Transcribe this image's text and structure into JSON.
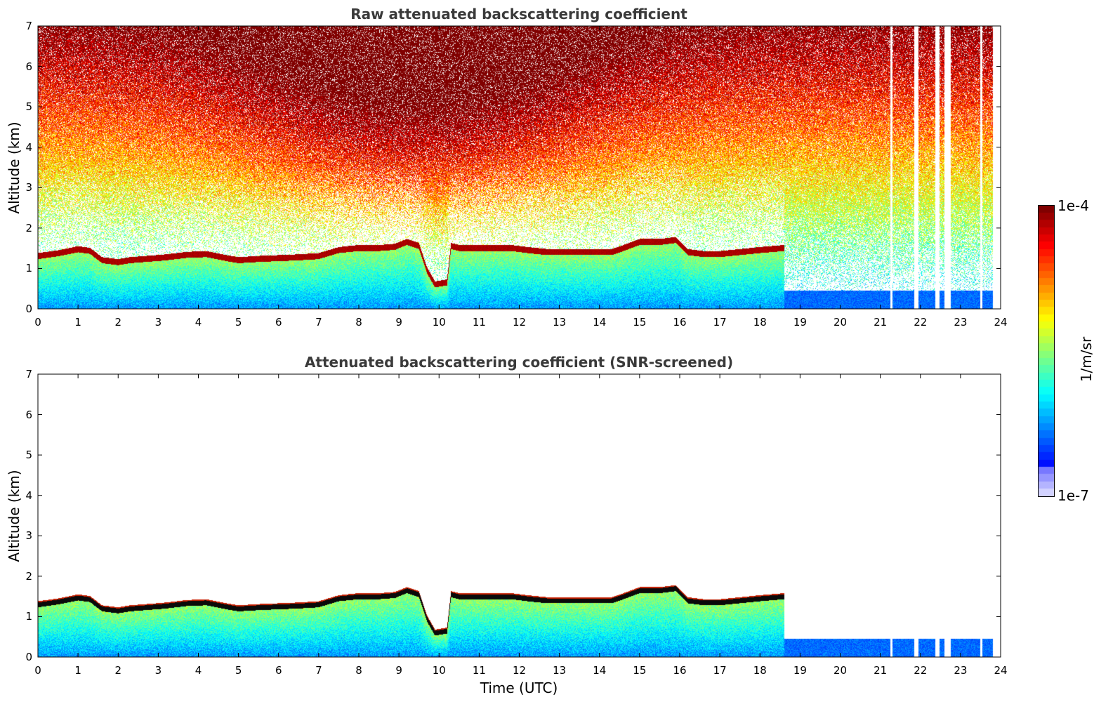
{
  "chart_data": [
    {
      "type": "heatmap",
      "title": "Raw attenuated backscattering coefficient",
      "ylabel": "Altitude (km)",
      "xlabel": "",
      "xlim": [
        0,
        24
      ],
      "ylim": [
        0,
        7
      ],
      "xticks": [
        "0",
        "1",
        "2",
        "3",
        "4",
        "5",
        "6",
        "7",
        "8",
        "9",
        "10",
        "11",
        "12",
        "13",
        "14",
        "15",
        "16",
        "17",
        "18",
        "19",
        "20",
        "21",
        "22",
        "23",
        "24"
      ],
      "yticks": [
        "0",
        "1",
        "2",
        "3",
        "4",
        "5",
        "6",
        "7"
      ],
      "data_end_hour": 23.8,
      "missing_data_hours": [
        [
          21.25,
          21.3
        ],
        [
          21.85,
          21.95
        ],
        [
          22.38,
          22.48
        ],
        [
          22.6,
          22.75
        ],
        [
          23.5,
          23.55
        ]
      ],
      "cloud_base_km": {
        "x": [
          0,
          0.5,
          1.0,
          1.3,
          1.6,
          2.0,
          2.3,
          2.7,
          3.2,
          3.7,
          4.2,
          4.7,
          5.0,
          5.5,
          6.0,
          6.5,
          7.0,
          7.5,
          8.0,
          8.5,
          8.9,
          9.2,
          9.5,
          9.7,
          9.9,
          10.2,
          10.3,
          10.5,
          10.8,
          11.2,
          11.8,
          12.2,
          12.7,
          13.2,
          13.8,
          14.3,
          14.6,
          15.0,
          15.5,
          15.9,
          16.2,
          16.6,
          17.0,
          17.5,
          18.0,
          18.6
        ],
        "y": [
          1.25,
          1.32,
          1.42,
          1.38,
          1.15,
          1.1,
          1.15,
          1.18,
          1.22,
          1.28,
          1.3,
          1.2,
          1.15,
          1.18,
          1.2,
          1.22,
          1.25,
          1.4,
          1.45,
          1.45,
          1.48,
          1.6,
          1.5,
          0.9,
          0.55,
          0.6,
          1.5,
          1.45,
          1.45,
          1.45,
          1.45,
          1.4,
          1.35,
          1.35,
          1.35,
          1.35,
          1.45,
          1.6,
          1.6,
          1.65,
          1.35,
          1.3,
          1.3,
          1.35,
          1.4,
          1.45
        ]
      }
    },
    {
      "type": "heatmap",
      "title": "Attenuated backscattering coefficient (SNR-screened)",
      "ylabel": "Altitude (km)",
      "xlabel": "Time (UTC)",
      "xlim": [
        0,
        24
      ],
      "ylim": [
        0,
        7
      ],
      "xticks": [
        "0",
        "1",
        "2",
        "3",
        "4",
        "5",
        "6",
        "7",
        "8",
        "9",
        "10",
        "11",
        "12",
        "13",
        "14",
        "15",
        "16",
        "17",
        "18",
        "19",
        "20",
        "21",
        "22",
        "23",
        "24"
      ],
      "yticks": [
        "0",
        "1",
        "2",
        "3",
        "4",
        "5",
        "6",
        "7"
      ],
      "data_end_hour": 23.8,
      "missing_data_hours": [
        [
          21.25,
          21.3
        ],
        [
          21.85,
          21.95
        ],
        [
          22.38,
          22.48
        ],
        [
          22.6,
          22.75
        ],
        [
          23.5,
          23.55
        ]
      ],
      "cloud_base_km": {
        "x": [
          0,
          0.5,
          1.0,
          1.3,
          1.6,
          2.0,
          2.3,
          2.7,
          3.2,
          3.7,
          4.2,
          4.7,
          5.0,
          5.5,
          6.0,
          6.5,
          7.0,
          7.5,
          8.0,
          8.5,
          8.9,
          9.2,
          9.5,
          9.7,
          9.9,
          10.2,
          10.3,
          10.5,
          10.8,
          11.2,
          11.8,
          12.2,
          12.7,
          13.2,
          13.8,
          14.3,
          14.6,
          15.0,
          15.5,
          15.9,
          16.2,
          16.6,
          17.0,
          17.5,
          18.0,
          18.6
        ],
        "y": [
          1.25,
          1.32,
          1.42,
          1.38,
          1.15,
          1.1,
          1.15,
          1.18,
          1.22,
          1.28,
          1.3,
          1.2,
          1.15,
          1.18,
          1.2,
          1.22,
          1.25,
          1.4,
          1.45,
          1.45,
          1.48,
          1.6,
          1.5,
          0.9,
          0.55,
          0.6,
          1.5,
          1.45,
          1.45,
          1.45,
          1.45,
          1.4,
          1.35,
          1.35,
          1.35,
          1.35,
          1.45,
          1.6,
          1.6,
          1.65,
          1.35,
          1.3,
          1.3,
          1.35,
          1.4,
          1.45
        ]
      }
    }
  ],
  "colorbar": {
    "label": "1/m/sr",
    "max_label": "1e-4",
    "min_label": "1e-7",
    "colormap": "jet"
  }
}
